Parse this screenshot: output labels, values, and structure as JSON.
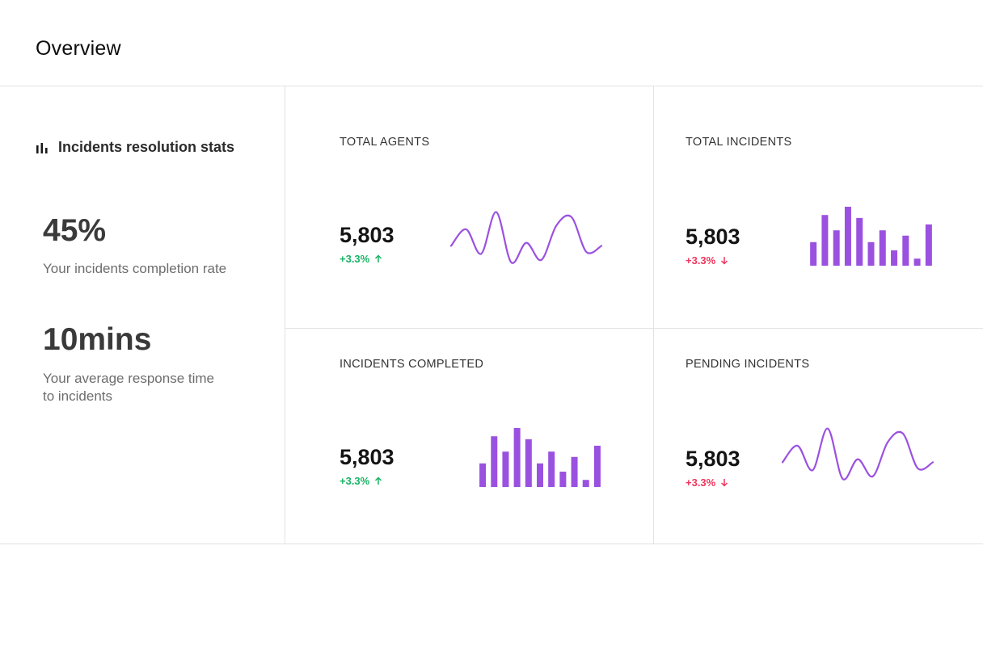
{
  "page": {
    "title": "Overview"
  },
  "summary": {
    "heading": "Incidents resolution stats",
    "heading_icon": "bar-chart-icon",
    "completion_rate": "45%",
    "completion_label": "Your incidents completion rate",
    "response_time": "10mins",
    "response_label_line1": "Your average response time",
    "response_label_line2": "to incidents"
  },
  "accent_color": "#9b51e0",
  "up_color": "#16b364",
  "down_color": "#f0365d",
  "cards": [
    {
      "label": "TOTAL AGENTS",
      "value": "5,803",
      "change": "+3.3%",
      "trend": "up",
      "chart": "line",
      "series": [
        0.35,
        0.62,
        0.22,
        0.9,
        0.08,
        0.4,
        0.12,
        0.68,
        0.82,
        0.25,
        0.35
      ]
    },
    {
      "label": "TOTAL INCIDENTS",
      "value": "5,803",
      "change": "+3.3%",
      "trend": "down",
      "chart": "bar",
      "series": [
        0.4,
        0.86,
        0.6,
        1.0,
        0.81,
        0.4,
        0.6,
        0.26,
        0.51,
        0.12,
        0.7
      ]
    },
    {
      "label": "INCIDENTS COMPLETED",
      "value": "5,803",
      "change": "+3.3%",
      "trend": "up",
      "chart": "bar",
      "series": [
        0.4,
        0.86,
        0.6,
        1.0,
        0.81,
        0.4,
        0.6,
        0.26,
        0.51,
        0.12,
        0.7
      ]
    },
    {
      "label": "PENDING INCIDENTS",
      "value": "5,803",
      "change": "+3.3%",
      "trend": "down",
      "chart": "line",
      "series": [
        0.35,
        0.62,
        0.22,
        0.9,
        0.08,
        0.4,
        0.12,
        0.68,
        0.82,
        0.25,
        0.35
      ]
    }
  ]
}
